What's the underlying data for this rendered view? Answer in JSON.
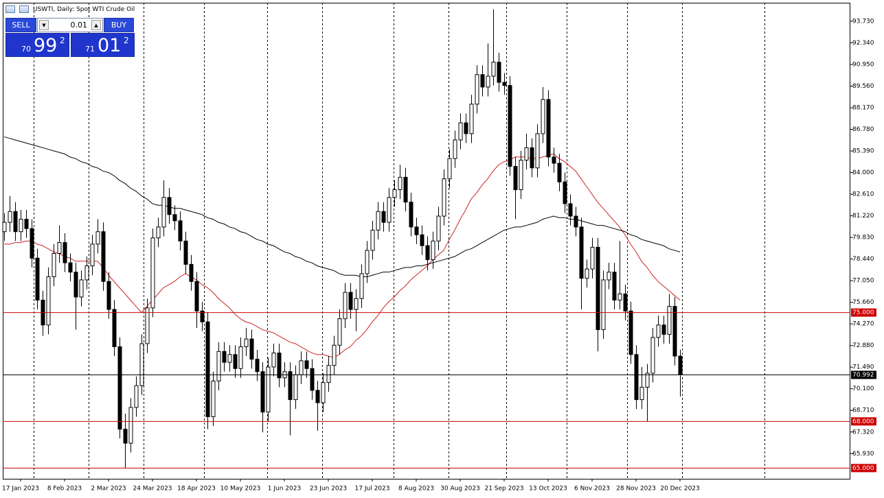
{
  "header": {
    "symbol": "USWTI, Daily:  Spot WTI Crude Oil"
  },
  "trade_panel": {
    "sell": "SELL",
    "buy": "BUY",
    "lot": "0.01",
    "bid": {
      "head": "70",
      "big": "99",
      "exp": "2"
    },
    "ask": {
      "head": "71",
      "big": "01",
      "exp": "2"
    }
  },
  "chart_data": {
    "type": "candlestick",
    "categories": [
      null,
      null,
      null,
      "17 Jan 2023",
      null,
      null,
      null,
      null,
      null,
      null,
      null,
      "8 Feb 2023",
      null,
      null,
      null,
      null,
      null,
      null,
      null,
      "2 Mar 2023",
      null,
      null,
      null,
      null,
      null,
      null,
      null,
      "24 Mar 2023",
      null,
      null,
      null,
      null,
      null,
      null,
      null,
      "18 Apr 2023",
      null,
      null,
      null,
      null,
      null,
      null,
      null,
      "10 May 2023",
      null,
      null,
      null,
      null,
      null,
      null,
      null,
      "1 Jun 2023",
      null,
      null,
      null,
      null,
      null,
      null,
      null,
      "23 Jun 2023",
      null,
      null,
      null,
      null,
      null,
      null,
      null,
      "17 Jul 2023",
      null,
      null,
      null,
      null,
      null,
      null,
      null,
      "8 Aug 2023",
      null,
      null,
      null,
      null,
      null,
      null,
      null,
      "30 Aug 2023",
      null,
      null,
      null,
      null,
      null,
      null,
      null,
      "21 Sep 2023",
      null,
      null,
      null,
      null,
      null,
      null,
      null,
      "13 Oct 2023",
      null,
      null,
      null,
      null,
      null,
      null,
      null,
      "6 Nov 2023",
      null,
      null,
      null,
      null,
      null,
      null,
      null,
      "28 Nov 2023",
      null,
      null,
      null,
      null,
      null,
      null,
      null,
      "20 Dec 2023"
    ],
    "open": [
      80.2,
      80.8,
      81.5,
      80.2,
      81.0,
      80.4,
      78.5,
      75.8,
      74.2,
      77.3,
      78.8,
      79.5,
      78.2,
      77.6,
      76.0,
      77.1,
      78.0,
      79.4,
      80.2,
      77.0,
      75.2,
      72.8,
      67.5,
      66.6,
      68.9,
      70.3,
      73.0,
      75.3,
      79.8,
      80.5,
      82.4,
      81.3,
      80.9,
      79.6,
      78.1,
      77.0,
      75.1,
      74.4,
      68.3,
      70.6,
      72.5,
      71.8,
      72.3,
      71.4,
      72.8,
      73.3,
      72.0,
      71.2,
      68.6,
      71.5,
      72.4,
      70.8,
      71.2,
      69.4,
      71.0,
      71.9,
      71.4,
      70.0,
      69.2,
      70.5,
      71.6,
      72.9,
      74.6,
      76.3,
      75.2,
      75.9,
      77.5,
      79.0,
      80.3,
      81.5,
      80.8,
      82.4,
      82.9,
      83.7,
      82.1,
      80.5,
      80.0,
      79.3,
      78.4,
      79.6,
      81.2,
      83.6,
      84.9,
      86.1,
      87.2,
      86.5,
      88.4,
      90.3,
      89.5,
      90.2,
      91.1,
      89.8,
      89.6,
      84.4,
      82.9,
      84.8,
      85.6,
      84.3,
      86.5,
      88.7,
      85.0,
      84.6,
      83.4,
      82.0,
      81.2,
      80.5,
      77.2,
      77.8,
      79.2,
      73.9,
      77.1,
      77.6,
      75.8,
      76.2,
      75.1,
      72.3,
      69.4,
      70.2,
      71.1,
      73.4,
      74.2,
      73.6,
      75.4,
      72.2
    ],
    "high": [
      81.4,
      82.5,
      82.1,
      81.6,
      81.6,
      81.0,
      79.1,
      76.4,
      77.9,
      79.4,
      80.6,
      80.1,
      78.8,
      78.2,
      77.7,
      78.6,
      80.0,
      81.0,
      80.8,
      77.6,
      75.8,
      73.4,
      68.5,
      69.5,
      70.9,
      73.6,
      75.9,
      80.4,
      81.1,
      83.5,
      83.0,
      81.9,
      81.5,
      80.2,
      78.7,
      77.6,
      75.7,
      75.0,
      71.2,
      73.1,
      73.1,
      72.9,
      72.9,
      73.4,
      74.0,
      73.9,
      72.6,
      71.8,
      72.1,
      73.0,
      73.0,
      71.8,
      71.8,
      71.6,
      72.5,
      72.5,
      72.0,
      70.6,
      71.1,
      72.2,
      73.5,
      75.2,
      76.9,
      76.9,
      76.5,
      78.1,
      79.6,
      80.9,
      82.1,
      82.1,
      83.0,
      83.5,
      84.5,
      84.3,
      82.7,
      81.1,
      80.6,
      79.9,
      80.2,
      81.8,
      84.2,
      85.5,
      86.7,
      87.8,
      87.8,
      89.0,
      90.9,
      90.9,
      92.3,
      94.5,
      91.7,
      90.4,
      90.2,
      85.0,
      85.4,
      86.5,
      86.2,
      87.1,
      89.5,
      89.3,
      85.6,
      85.2,
      84.0,
      82.6,
      81.8,
      81.1,
      78.4,
      79.8,
      79.8,
      77.7,
      78.2,
      78.2,
      79.6,
      76.8,
      75.7,
      72.9,
      71.5,
      71.7,
      74.0,
      74.8,
      74.8,
      76.2,
      76.0,
      72.6
    ],
    "low": [
      79.6,
      80.2,
      79.6,
      79.6,
      79.8,
      77.9,
      75.2,
      73.5,
      73.6,
      76.7,
      78.2,
      77.6,
      77.0,
      73.9,
      75.4,
      76.5,
      77.4,
      78.8,
      76.4,
      74.6,
      72.2,
      66.9,
      65.0,
      66.0,
      68.3,
      69.7,
      72.4,
      74.7,
      79.2,
      79.9,
      80.7,
      80.3,
      79.0,
      77.5,
      76.4,
      74.0,
      73.8,
      67.5,
      67.7,
      70.0,
      71.2,
      71.2,
      70.8,
      70.8,
      72.2,
      71.4,
      70.6,
      67.3,
      68.0,
      70.9,
      70.2,
      70.2,
      67.1,
      68.8,
      70.4,
      70.8,
      69.4,
      67.4,
      68.6,
      69.9,
      71.0,
      72.3,
      74.0,
      74.6,
      73.8,
      75.3,
      76.9,
      78.4,
      79.7,
      80.2,
      80.2,
      81.8,
      82.3,
      81.5,
      79.9,
      79.4,
      78.7,
      77.7,
      77.8,
      79.0,
      80.6,
      83.0,
      84.3,
      85.5,
      85.9,
      85.9,
      87.8,
      88.9,
      88.9,
      89.6,
      89.2,
      89.0,
      83.8,
      81.0,
      82.3,
      84.2,
      83.7,
      83.7,
      85.9,
      84.4,
      84.0,
      82.8,
      81.4,
      80.6,
      79.9,
      75.2,
      76.6,
      77.2,
      72.5,
      73.3,
      76.5,
      75.2,
      75.2,
      74.5,
      71.7,
      68.8,
      68.8,
      68.0,
      70.5,
      72.8,
      73.0,
      73.0,
      71.6,
      69.6
    ],
    "close": [
      80.8,
      81.5,
      80.2,
      81.0,
      80.4,
      78.5,
      75.8,
      74.2,
      77.3,
      78.8,
      79.5,
      78.2,
      77.6,
      76.0,
      77.1,
      78.0,
      79.4,
      80.2,
      77.0,
      75.2,
      72.8,
      67.5,
      66.6,
      68.9,
      70.3,
      73.0,
      75.3,
      79.8,
      80.5,
      82.4,
      81.3,
      80.9,
      79.6,
      78.1,
      77.0,
      75.1,
      74.4,
      68.3,
      70.6,
      72.5,
      71.8,
      72.3,
      71.4,
      72.8,
      73.3,
      72.0,
      71.2,
      68.6,
      71.5,
      72.4,
      70.8,
      71.2,
      69.4,
      71.0,
      71.9,
      71.4,
      70.0,
      69.2,
      70.5,
      71.6,
      72.9,
      74.6,
      76.3,
      75.2,
      75.9,
      77.5,
      79.0,
      80.3,
      81.5,
      80.8,
      82.4,
      82.9,
      83.7,
      82.1,
      80.5,
      80.0,
      79.3,
      78.4,
      79.6,
      81.2,
      83.6,
      84.9,
      86.1,
      87.2,
      86.5,
      88.4,
      90.3,
      89.5,
      90.2,
      91.1,
      89.8,
      89.6,
      84.4,
      82.9,
      84.8,
      85.6,
      84.3,
      86.5,
      88.7,
      85.0,
      84.6,
      83.4,
      82.0,
      81.2,
      80.5,
      77.2,
      77.8,
      79.2,
      73.9,
      77.1,
      77.6,
      75.8,
      76.2,
      75.1,
      72.3,
      69.4,
      70.2,
      71.1,
      73.4,
      74.2,
      73.6,
      75.4,
      72.2,
      70.992
    ],
    "up_color": "#ffffff",
    "down_color": "#000000",
    "candle_border": "#000000",
    "series": [
      {
        "color": "#cc2222",
        "values": [
          79.4,
          79.4,
          79.5,
          79.5,
          79.6,
          79.6,
          79.4,
          79.3,
          79.1,
          78.9,
          78.8,
          78.6,
          78.5,
          78.3,
          78.3,
          78.3,
          78.3,
          78.3,
          77.9,
          77.4,
          77.0,
          76.6,
          76.2,
          75.8,
          75.4,
          75.0,
          75.4,
          75.8,
          76.2,
          76.6,
          76.8,
          77.0,
          77.3,
          77.5,
          77.3,
          77.1,
          76.8,
          76.6,
          76.3,
          75.9,
          75.6,
          75.3,
          74.9,
          74.6,
          74.4,
          74.3,
          74.1,
          73.9,
          73.8,
          73.7,
          73.5,
          73.3,
          73.1,
          73.0,
          72.8,
          72.6,
          72.4,
          72.3,
          72.3,
          72.2,
          72.1,
          72.3,
          72.6,
          72.8,
          73.2,
          73.5,
          73.9,
          74.4,
          74.8,
          75.3,
          75.7,
          76.0,
          76.4,
          76.7,
          77.1,
          77.4,
          77.7,
          78.0,
          78.4,
          78.7,
          79.0,
          79.7,
          80.3,
          81.0,
          81.6,
          82.3,
          82.7,
          83.2,
          83.6,
          84.1,
          84.5,
          84.7,
          84.8,
          85.0,
          85.0,
          85.0,
          84.9,
          84.9,
          85.0,
          85.1,
          85.2,
          84.9,
          84.7,
          84.4,
          84.1,
          83.6,
          83.1,
          82.6,
          82.1,
          81.7,
          81.3,
          80.9,
          80.5,
          80.0,
          79.4,
          78.9,
          78.3,
          77.9,
          77.4,
          77.0,
          76.7,
          76.4,
          76.1,
          75.8
        ]
      },
      {
        "color": "#000000",
        "values": [
          86.3,
          86.2,
          86.1,
          86.0,
          85.9,
          85.8,
          85.7,
          85.6,
          85.5,
          85.4,
          85.3,
          85.2,
          85.0,
          84.9,
          84.7,
          84.6,
          84.4,
          84.3,
          84.1,
          84.0,
          83.8,
          83.5,
          83.3,
          83.0,
          82.8,
          82.5,
          82.3,
          82.0,
          81.9,
          81.9,
          81.8,
          81.7,
          81.7,
          81.6,
          81.5,
          81.4,
          81.3,
          81.1,
          81.0,
          80.8,
          80.7,
          80.5,
          80.4,
          80.2,
          80.1,
          79.9,
          79.7,
          79.6,
          79.4,
          79.3,
          79.1,
          78.9,
          78.8,
          78.6,
          78.5,
          78.3,
          78.2,
          78.0,
          77.9,
          77.8,
          77.7,
          77.5,
          77.4,
          77.4,
          77.4,
          77.3,
          77.3,
          77.4,
          77.5,
          77.6,
          77.6,
          77.7,
          77.8,
          77.9,
          77.9,
          78.0,
          78.0,
          78.1,
          78.2,
          78.3,
          78.4,
          78.5,
          78.6,
          78.8,
          79.0,
          79.1,
          79.3,
          79.5,
          79.7,
          79.9,
          80.1,
          80.3,
          80.4,
          80.5,
          80.5,
          80.6,
          80.7,
          80.8,
          81.0,
          81.1,
          81.2,
          81.1,
          81.1,
          81.0,
          81.0,
          80.9,
          80.8,
          80.7,
          80.6,
          80.6,
          80.5,
          80.4,
          80.3,
          80.2,
          80.0,
          79.9,
          79.7,
          79.6,
          79.5,
          79.4,
          79.3,
          79.1,
          79.0,
          78.9
        ]
      }
    ],
    "levels": [
      {
        "value": 75,
        "label": "75.000",
        "color": "#cc0000"
      },
      {
        "value": 70.992,
        "label": "70.992",
        "color": "#000000"
      },
      {
        "value": 68,
        "label": "68.000",
        "color": "#cc0000"
      },
      {
        "value": 65,
        "label": "65.000",
        "color": "#cc0000"
      }
    ],
    "ylim": [
      64.31,
      94.92
    ],
    "yticks": [
      {
        "value": 93.73,
        "label": "93.730"
      },
      {
        "value": 92.34,
        "label": "92.340"
      },
      {
        "value": 90.95,
        "label": "90.950"
      },
      {
        "value": 89.56,
        "label": "89.560"
      },
      {
        "value": 88.17,
        "label": "88.170"
      },
      {
        "value": 86.78,
        "label": "86.780"
      },
      {
        "value": 85.39,
        "label": "85.390"
      },
      {
        "value": 84,
        "label": "84.000"
      },
      {
        "value": 82.61,
        "label": "82.610"
      },
      {
        "value": 81.22,
        "label": "81.220"
      },
      {
        "value": 79.83,
        "label": "79.830"
      },
      {
        "value": 78.44,
        "label": "78.440"
      },
      {
        "value": 77.05,
        "label": "77.050"
      },
      {
        "value": 75.66,
        "label": "75.660"
      },
      {
        "value": 74.27,
        "label": "74.270"
      },
      {
        "value": 72.88,
        "label": "72.880"
      },
      {
        "value": 71.49,
        "label": "71.490"
      },
      {
        "value": 70.1,
        "label": "70.100"
      },
      {
        "value": 68.71,
        "label": "68.710"
      },
      {
        "value": 67.32,
        "label": "67.320"
      },
      {
        "value": 65.93,
        "label": "65.930"
      }
    ]
  }
}
